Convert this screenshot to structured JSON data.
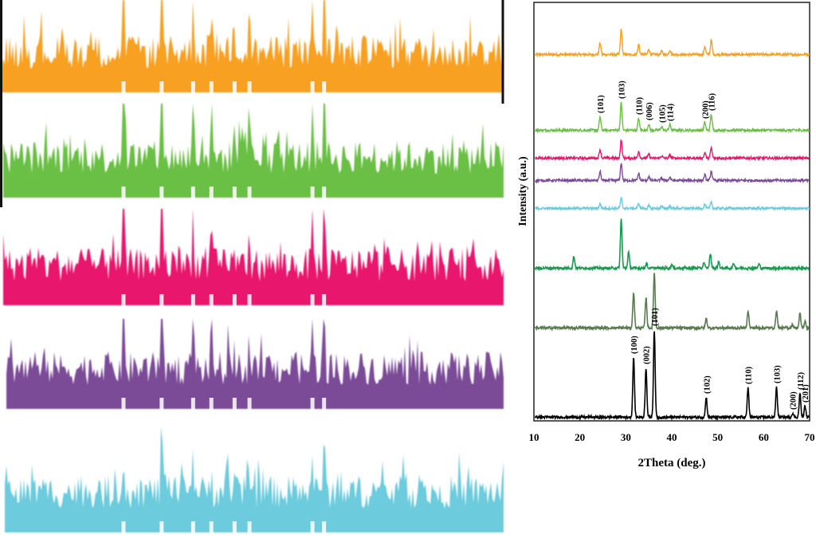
{
  "chart_data": {
    "type": "line",
    "xlabel": "2Theta (deg.)",
    "ylabel": "Intensity (a.u.)",
    "xlim": [
      10,
      70
    ],
    "xticks": [
      "10",
      "20",
      "30",
      "40",
      "50",
      "60",
      "70"
    ],
    "grid": false,
    "legend": "none",
    "series": [
      {
        "color": "#f7a021",
        "peaks": [
          [
            24.4,
            15
          ],
          [
            29.0,
            32
          ],
          [
            32.8,
            13
          ],
          [
            35.0,
            7
          ],
          [
            37.8,
            4
          ],
          [
            39.6,
            6
          ],
          [
            47.2,
            10
          ],
          [
            48.6,
            18
          ]
        ],
        "labels": []
      },
      {
        "color": "#6abf45",
        "peaks": [
          [
            24.4,
            17
          ],
          [
            29.0,
            35
          ],
          [
            32.8,
            15
          ],
          [
            35.0,
            8
          ],
          [
            37.8,
            5
          ],
          [
            39.6,
            7
          ],
          [
            47.2,
            10
          ],
          [
            48.6,
            20
          ]
        ],
        "labels": [
          [
            "(101)",
            24.4
          ],
          [
            "(103)",
            29.0
          ],
          [
            "(110)",
            32.8
          ],
          [
            "(006)",
            35.0
          ],
          [
            "(105)",
            37.8
          ],
          [
            "(114)",
            39.6
          ],
          [
            "(200)",
            47.2
          ],
          [
            "(116)",
            48.6
          ]
        ]
      },
      {
        "color": "#e8196c",
        "peaks": [
          [
            24.4,
            11
          ],
          [
            29.0,
            23
          ],
          [
            32.8,
            9
          ],
          [
            35.0,
            5
          ],
          [
            37.8,
            3
          ],
          [
            39.6,
            4
          ],
          [
            47.2,
            7
          ],
          [
            48.6,
            13
          ]
        ],
        "labels": []
      },
      {
        "color": "#7b4b97",
        "peaks": [
          [
            24.4,
            11
          ],
          [
            29.0,
            22
          ],
          [
            32.8,
            9
          ],
          [
            35.0,
            5
          ],
          [
            37.8,
            3
          ],
          [
            39.6,
            4
          ],
          [
            47.2,
            7
          ],
          [
            48.6,
            12
          ]
        ],
        "labels": []
      },
      {
        "color": "#6ccbdc",
        "peaks": [
          [
            24.4,
            6
          ],
          [
            29.0,
            13
          ],
          [
            32.8,
            6
          ],
          [
            35.0,
            3
          ],
          [
            37.8,
            2
          ],
          [
            39.6,
            3
          ],
          [
            47.2,
            5
          ],
          [
            48.6,
            8
          ]
        ],
        "labels": []
      },
      {
        "color": "#1a9a50",
        "peaks": [
          [
            18.7,
            15
          ],
          [
            29.0,
            62
          ],
          [
            30.6,
            20
          ],
          [
            34.5,
            6
          ],
          [
            40.0,
            5
          ],
          [
            47.0,
            7
          ],
          [
            48.4,
            18
          ],
          [
            50.2,
            8
          ],
          [
            53.5,
            6
          ],
          [
            59.0,
            5
          ]
        ],
        "labels": []
      },
      {
        "color": "#5a7a50",
        "peaks": [
          [
            31.7,
            45
          ],
          [
            34.4,
            38
          ],
          [
            36.2,
            70
          ],
          [
            47.5,
            12
          ],
          [
            56.6,
            22
          ],
          [
            62.8,
            22
          ],
          [
            66.3,
            4
          ],
          [
            67.9,
            18
          ],
          [
            69.0,
            8
          ]
        ],
        "labels": []
      },
      {
        "color": "#000000",
        "peaks": [
          [
            31.7,
            75
          ],
          [
            34.4,
            62
          ],
          [
            36.2,
            110
          ],
          [
            47.5,
            25
          ],
          [
            56.6,
            37
          ],
          [
            62.8,
            38
          ],
          [
            66.3,
            5
          ],
          [
            67.9,
            30
          ],
          [
            69.0,
            14
          ]
        ],
        "labels": [
          [
            "(100)",
            31.7
          ],
          [
            "(002)",
            34.4
          ],
          [
            "(101)",
            36.2
          ],
          [
            "(102)",
            47.5
          ],
          [
            "(110)",
            56.6
          ],
          [
            "(103)",
            62.8
          ],
          [
            "(200)",
            66.3
          ],
          [
            "(112)",
            67.9
          ],
          [
            "(201)",
            69.0
          ]
        ]
      }
    ]
  }
}
